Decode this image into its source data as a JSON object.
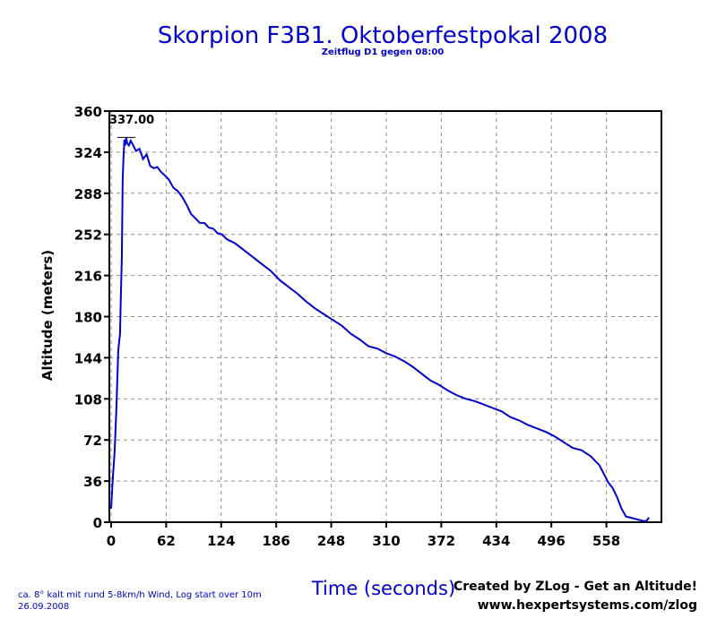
{
  "chart_data": {
    "type": "line",
    "title": "Skorpion F3B1. Oktoberfestpokal 2008",
    "subtitle": "Zeitflug D1 gegen 08:00",
    "xlabel": "Time (seconds)",
    "ylabel": "Altitude (meters)",
    "xlim": [
      -2,
      620
    ],
    "ylim": [
      0,
      360
    ],
    "x_ticks": [
      0,
      62,
      124,
      186,
      248,
      310,
      372,
      434,
      496,
      558
    ],
    "y_ticks": [
      0,
      36,
      72,
      108,
      144,
      180,
      216,
      252,
      288,
      324,
      360
    ],
    "grid": true,
    "line_color": "#0000cc",
    "peak_label": "337.00",
    "peak": {
      "x": 17,
      "y": 337
    },
    "series": [
      {
        "x": [
          0,
          2,
          4,
          6,
          8,
          10,
          11,
          12,
          13,
          14,
          15,
          16,
          17,
          18,
          20,
          22,
          25,
          28,
          32,
          36,
          40,
          44,
          48,
          52,
          56,
          60,
          65,
          70,
          75,
          80,
          85,
          90,
          95,
          100,
          105,
          110,
          115,
          120,
          125,
          130,
          135,
          140,
          150,
          160,
          170,
          180,
          190,
          200,
          210,
          220,
          230,
          240,
          250,
          260,
          270,
          280,
          290,
          300,
          310,
          320,
          330,
          340,
          350,
          360,
          370,
          380,
          390,
          400,
          410,
          420,
          430,
          440,
          450,
          460,
          470,
          480,
          490,
          500,
          510,
          520,
          530,
          540,
          550,
          560,
          565,
          570,
          575,
          580,
          585,
          590,
          595,
          600,
          603,
          606
        ],
        "y": [
          12,
          40,
          62,
          100,
          150,
          165,
          200,
          230,
          300,
          320,
          335,
          330,
          337,
          332,
          330,
          334,
          330,
          325,
          327,
          318,
          322,
          312,
          310,
          311,
          307,
          304,
          300,
          293,
          290,
          285,
          278,
          270,
          266,
          262,
          262,
          258,
          257,
          253,
          252,
          248,
          246,
          244,
          238,
          232,
          226,
          220,
          212,
          206,
          200,
          193,
          187,
          182,
          177,
          172,
          165,
          160,
          154,
          152,
          148,
          145,
          141,
          136,
          130,
          124,
          120,
          115,
          111,
          108,
          106,
          103,
          100,
          97,
          92,
          89,
          85,
          82,
          79,
          75,
          70,
          65,
          63,
          58,
          50,
          35,
          30,
          22,
          12,
          5,
          4,
          3,
          2,
          1,
          1,
          4
        ]
      }
    ]
  },
  "footer": {
    "note_line1": "ca. 8° kalt mit rund 5-8km/h Wind, Log start over 10m",
    "note_line2": "26.09.2008",
    "credit_line1": "Created by ZLog - Get an Altitude!",
    "credit_line2": "www.hexpertsystems.com/zlog"
  }
}
